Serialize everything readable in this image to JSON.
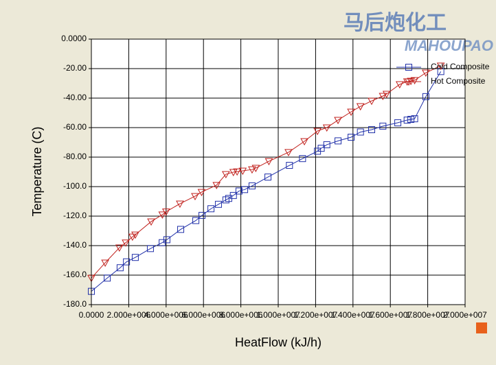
{
  "chart_data": {
    "type": "line",
    "x_label": "HeatFlow (kJ/h)",
    "y_label": "Temperature (C)",
    "watermark": [
      "马后炮化工",
      "MAHOUPAO"
    ],
    "grid": true,
    "legend": "upper right",
    "xlim": [
      0,
      20000000
    ],
    "ylim": [
      -180,
      0
    ],
    "xticks": [
      {
        "value": 0,
        "label": "0.0000"
      },
      {
        "value": 2000000,
        "label": "2.000e+006"
      },
      {
        "value": 4000000,
        "label": "4.000e+006"
      },
      {
        "value": 6000000,
        "label": "6.000e+006"
      },
      {
        "value": 8000000,
        "label": "8.000e+006"
      },
      {
        "value": 10000000,
        "label": "1.000e+007"
      },
      {
        "value": 12000000,
        "label": "1.200e+007"
      },
      {
        "value": 14000000,
        "label": "1.400e+007"
      },
      {
        "value": 16000000,
        "label": "1.600e+007"
      },
      {
        "value": 18000000,
        "label": "1.800e+007"
      },
      {
        "value": 20000000,
        "label": "2.000e+007"
      }
    ],
    "yticks": [
      {
        "value": 0,
        "label": "0.0000"
      },
      {
        "value": -20,
        "label": "-20.00"
      },
      {
        "value": -40,
        "label": "-40.00"
      },
      {
        "value": -60,
        "label": "-60.00"
      },
      {
        "value": -80,
        "label": "-80.00"
      },
      {
        "value": -100,
        "label": "-100.0"
      },
      {
        "value": -120,
        "label": "-120.0"
      },
      {
        "value": -140,
        "label": "-140.0"
      },
      {
        "value": -160,
        "label": "-160.0"
      },
      {
        "value": -180,
        "label": "-180.0"
      }
    ],
    "series": [
      {
        "name": "Cold Composite",
        "color": "#1f2fa8",
        "marker": "square",
        "x": [
          0,
          850000,
          1540000,
          1880000,
          2350000,
          3160000,
          3790000,
          4040000,
          4780000,
          5590000,
          5920000,
          6400000,
          6800000,
          7200000,
          7350000,
          7600000,
          7900000,
          8200000,
          8600000,
          9450000,
          10600000,
          11300000,
          12100000,
          12300000,
          12600000,
          13200000,
          13900000,
          14400000,
          15000000,
          15600000,
          16400000,
          16900000,
          17100000,
          17300000,
          17900000,
          18700000
        ],
        "values": [
          -171,
          -162,
          -155,
          -151,
          -148,
          -142,
          -138,
          -136,
          -129,
          -123,
          -119.5,
          -115,
          -112,
          -109,
          -108,
          -106,
          -103,
          -102,
          -99.5,
          -93.5,
          -85.6,
          -81,
          -76,
          -74,
          -71.6,
          -69,
          -66.5,
          -63,
          -61.4,
          -59,
          -56.7,
          -54.9,
          -54.4,
          -54,
          -39,
          -22
        ]
      },
      {
        "name": "Hot Composite",
        "color": "#c0201c",
        "marker": "triangle-down",
        "x": [
          0,
          740000,
          1500000,
          1840000,
          2200000,
          2350000,
          3200000,
          3800000,
          4000000,
          4740000,
          5550000,
          5900000,
          6700000,
          7200000,
          7600000,
          7800000,
          8100000,
          8600000,
          8800000,
          9500000,
          10550000,
          11400000,
          12100000,
          12600000,
          13200000,
          13900000,
          14400000,
          15000000,
          15600000,
          15800000,
          16500000,
          16900000,
          17100000,
          17300000,
          17900000,
          18700000
        ],
        "values": [
          -162,
          -151.6,
          -141.4,
          -138,
          -134,
          -132.6,
          -123.7,
          -119,
          -117,
          -111.6,
          -106.5,
          -103.7,
          -99,
          -91.6,
          -90.2,
          -89.8,
          -89.3,
          -88.4,
          -87.4,
          -82.8,
          -76.7,
          -69.3,
          -62.3,
          -60,
          -54.9,
          -49.3,
          -45.6,
          -41.9,
          -38.6,
          -37.2,
          -30.7,
          -28.8,
          -28.4,
          -27.9,
          -22.8,
          -18.1
        ]
      }
    ]
  }
}
